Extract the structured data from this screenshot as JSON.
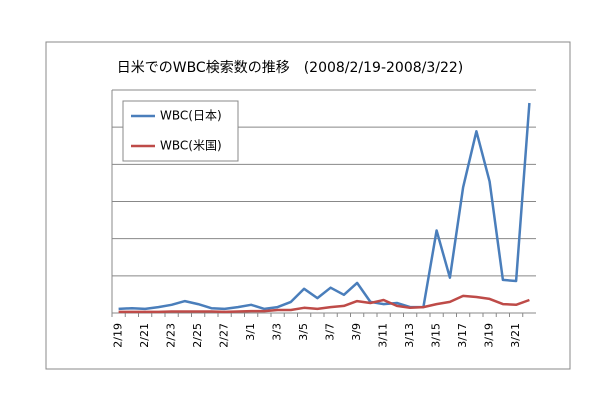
{
  "chart_data": {
    "type": "line",
    "title": "日米でのWBC検索数の推移　(2008/2/19-2008/3/22)",
    "categories": [
      "2/19",
      null,
      "2/21",
      null,
      "2/23",
      null,
      "2/25",
      null,
      "2/27",
      null,
      "3/1",
      null,
      "3/3",
      null,
      "3/5",
      null,
      "3/7",
      null,
      "3/9",
      null,
      "3/11",
      null,
      "3/13",
      null,
      "3/15",
      null,
      "3/17",
      null,
      "3/19",
      null,
      "3/21",
      null
    ],
    "series": [
      {
        "name": "WBC(日本)",
        "color": "#4a7ebb",
        "values": [
          0.11,
          0.13,
          0.11,
          0.16,
          0.22,
          0.32,
          0.24,
          0.13,
          0.11,
          0.16,
          0.22,
          0.11,
          0.16,
          0.3,
          0.65,
          0.4,
          0.68,
          0.49,
          0.81,
          0.3,
          0.24,
          0.27,
          0.16,
          0.16,
          2.22,
          0.95,
          3.38,
          4.89,
          3.54,
          0.89,
          0.86,
          5.65
        ]
      },
      {
        "name": "WBC(米国)",
        "color": "#be4b48",
        "values": [
          0.03,
          0.03,
          0.03,
          0.03,
          0.04,
          0.04,
          0.04,
          0.04,
          0.03,
          0.04,
          0.05,
          0.05,
          0.08,
          0.08,
          0.14,
          0.11,
          0.16,
          0.19,
          0.32,
          0.27,
          0.35,
          0.19,
          0.14,
          0.16,
          0.24,
          0.3,
          0.46,
          0.43,
          0.38,
          0.24,
          0.22,
          0.35
        ]
      }
    ],
    "ylim": [
      0,
      6
    ],
    "yticks": [
      0,
      1,
      2,
      3,
      4,
      5,
      6
    ],
    "ytick_labels": false,
    "grid": true,
    "legend": "upper left"
  }
}
